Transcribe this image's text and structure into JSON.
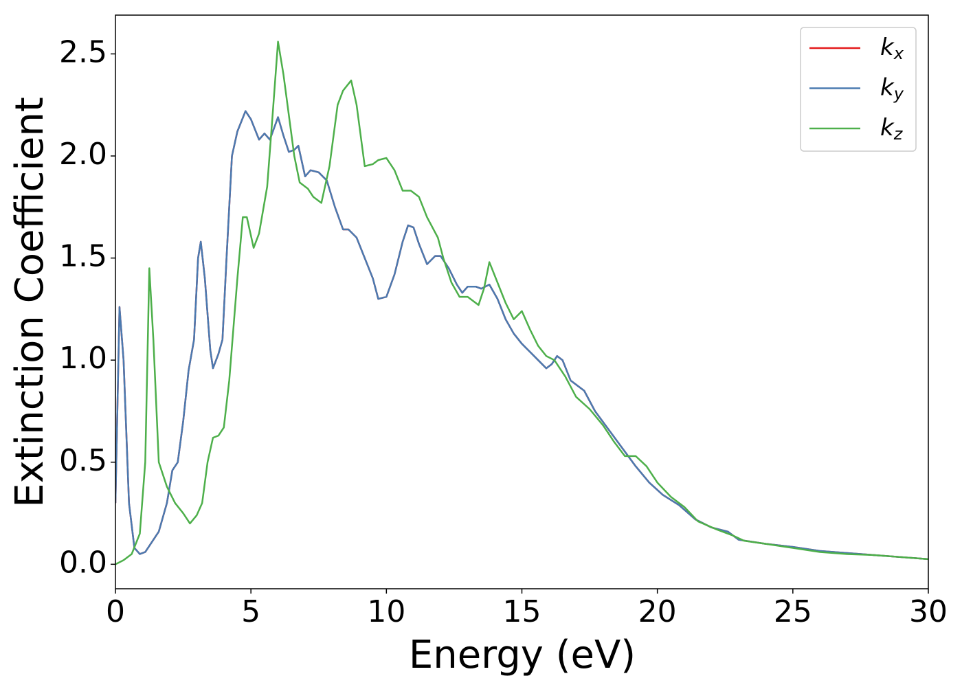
{
  "chart_data": {
    "type": "line",
    "x_label": "Energy (eV)",
    "y_label": "Extinction Coefficient",
    "xlim": [
      0,
      30
    ],
    "ylim": [
      -0.12,
      2.69
    ],
    "xticks": [
      0,
      5,
      10,
      15,
      20,
      25,
      30
    ],
    "yticks": [
      {
        "value": 0,
        "label": "0.0"
      },
      0.5,
      {
        "value": 1,
        "label": "1.0"
      },
      1.5,
      {
        "value": 2,
        "label": "2.0"
      },
      2.5
    ],
    "grid": false,
    "legend": "upper right",
    "series": [
      {
        "name": "kx",
        "color": "#e41a1c",
        "x": [
          0,
          0.15,
          0.3,
          0.5,
          0.7,
          0.9,
          1.1,
          1.3,
          1.6,
          1.9,
          2.1,
          2.3,
          2.5,
          2.7,
          2.9,
          3.05,
          3.15,
          3.3,
          3.5,
          3.6,
          3.8,
          3.95,
          4.1,
          4.3,
          4.5,
          4.8,
          5.0,
          5.3,
          5.5,
          5.7,
          6.0,
          6.2,
          6.4,
          6.6,
          6.75,
          7.0,
          7.2,
          7.5,
          7.8,
          8.1,
          8.4,
          8.6,
          8.9,
          9.2,
          9.5,
          9.7,
          10.0,
          10.3,
          10.6,
          10.8,
          11.0,
          11.2,
          11.5,
          11.8,
          12.0,
          12.3,
          12.6,
          12.8,
          13.0,
          13.3,
          13.5,
          13.8,
          14.1,
          14.4,
          14.7,
          15.0,
          15.3,
          15.6,
          15.9,
          16.1,
          16.3,
          16.5,
          16.8,
          17.3,
          17.7,
          18.2,
          18.7,
          19.2,
          19.7,
          20.2,
          20.8,
          21.4,
          22.0,
          22.6,
          23.0,
          24.0,
          25.0,
          26.0,
          27.0,
          28.0,
          29.0,
          30.0
        ],
        "values": [
          0.3,
          1.26,
          1.0,
          0.3,
          0.08,
          0.05,
          0.06,
          0.1,
          0.16,
          0.3,
          0.46,
          0.5,
          0.7,
          0.95,
          1.1,
          1.5,
          1.58,
          1.4,
          1.05,
          0.96,
          1.03,
          1.1,
          1.5,
          2.0,
          2.12,
          2.22,
          2.18,
          2.08,
          2.11,
          2.08,
          2.19,
          2.1,
          2.02,
          2.03,
          2.05,
          1.9,
          1.93,
          1.92,
          1.88,
          1.75,
          1.64,
          1.64,
          1.6,
          1.5,
          1.4,
          1.3,
          1.31,
          1.42,
          1.58,
          1.66,
          1.65,
          1.57,
          1.47,
          1.51,
          1.51,
          1.45,
          1.37,
          1.33,
          1.36,
          1.36,
          1.35,
          1.37,
          1.3,
          1.2,
          1.13,
          1.08,
          1.04,
          1.0,
          0.96,
          0.98,
          1.02,
          1.0,
          0.9,
          0.85,
          0.75,
          0.66,
          0.57,
          0.48,
          0.4,
          0.34,
          0.29,
          0.22,
          0.18,
          0.16,
          0.12,
          0.1,
          0.085,
          0.065,
          0.055,
          0.045,
          0.035,
          0.025
        ]
      },
      {
        "name": "ky",
        "color": "#4a7ab0",
        "x": [
          0,
          0.15,
          0.3,
          0.5,
          0.7,
          0.9,
          1.1,
          1.3,
          1.6,
          1.9,
          2.1,
          2.3,
          2.5,
          2.7,
          2.9,
          3.05,
          3.15,
          3.3,
          3.5,
          3.6,
          3.8,
          3.95,
          4.1,
          4.3,
          4.5,
          4.8,
          5.0,
          5.3,
          5.5,
          5.7,
          6.0,
          6.2,
          6.4,
          6.6,
          6.75,
          7.0,
          7.2,
          7.5,
          7.8,
          8.1,
          8.4,
          8.6,
          8.9,
          9.2,
          9.5,
          9.7,
          10.0,
          10.3,
          10.6,
          10.8,
          11.0,
          11.2,
          11.5,
          11.8,
          12.0,
          12.3,
          12.6,
          12.8,
          13.0,
          13.3,
          13.5,
          13.8,
          14.1,
          14.4,
          14.7,
          15.0,
          15.3,
          15.6,
          15.9,
          16.1,
          16.3,
          16.5,
          16.8,
          17.3,
          17.7,
          18.2,
          18.7,
          19.2,
          19.7,
          20.2,
          20.8,
          21.4,
          22.0,
          22.6,
          23.0,
          24.0,
          25.0,
          26.0,
          27.0,
          28.0,
          29.0,
          30.0
        ],
        "values": [
          0.3,
          1.26,
          1.0,
          0.3,
          0.08,
          0.05,
          0.06,
          0.1,
          0.16,
          0.3,
          0.46,
          0.5,
          0.7,
          0.95,
          1.1,
          1.5,
          1.58,
          1.4,
          1.05,
          0.96,
          1.03,
          1.1,
          1.5,
          2.0,
          2.12,
          2.22,
          2.18,
          2.08,
          2.11,
          2.08,
          2.19,
          2.1,
          2.02,
          2.03,
          2.05,
          1.9,
          1.93,
          1.92,
          1.88,
          1.75,
          1.64,
          1.64,
          1.6,
          1.5,
          1.4,
          1.3,
          1.31,
          1.42,
          1.58,
          1.66,
          1.65,
          1.57,
          1.47,
          1.51,
          1.51,
          1.45,
          1.37,
          1.33,
          1.36,
          1.36,
          1.35,
          1.37,
          1.3,
          1.2,
          1.13,
          1.08,
          1.04,
          1.0,
          0.96,
          0.98,
          1.02,
          1.0,
          0.9,
          0.85,
          0.75,
          0.66,
          0.57,
          0.48,
          0.4,
          0.34,
          0.29,
          0.22,
          0.18,
          0.16,
          0.12,
          0.1,
          0.085,
          0.065,
          0.055,
          0.045,
          0.035,
          0.025
        ]
      },
      {
        "name": "kz",
        "color": "#4daf4a",
        "x": [
          0,
          0.3,
          0.6,
          0.9,
          1.1,
          1.25,
          1.4,
          1.6,
          1.9,
          2.2,
          2.5,
          2.75,
          3.0,
          3.2,
          3.4,
          3.6,
          3.8,
          4.0,
          4.2,
          4.5,
          4.7,
          4.85,
          5.1,
          5.3,
          5.6,
          5.8,
          6.0,
          6.2,
          6.4,
          6.6,
          6.8,
          7.1,
          7.3,
          7.6,
          7.9,
          8.2,
          8.4,
          8.7,
          8.9,
          9.2,
          9.5,
          9.7,
          10.0,
          10.3,
          10.6,
          10.9,
          11.2,
          11.5,
          11.9,
          12.1,
          12.4,
          12.7,
          13.0,
          13.4,
          13.6,
          13.8,
          14.1,
          14.4,
          14.7,
          15.0,
          15.3,
          15.6,
          15.9,
          16.2,
          16.6,
          17.0,
          17.5,
          18.0,
          18.4,
          18.8,
          19.2,
          19.6,
          20.0,
          20.5,
          21.0,
          21.5,
          22.2,
          22.8,
          23.2,
          24.0,
          25.0,
          26.0,
          27.0,
          28.0,
          29.0,
          30.0
        ],
        "values": [
          0.0,
          0.02,
          0.05,
          0.15,
          0.5,
          1.45,
          1.1,
          0.5,
          0.38,
          0.3,
          0.25,
          0.2,
          0.24,
          0.3,
          0.5,
          0.62,
          0.63,
          0.67,
          0.9,
          1.4,
          1.7,
          1.7,
          1.55,
          1.62,
          1.85,
          2.2,
          2.56,
          2.4,
          2.2,
          2.0,
          1.87,
          1.84,
          1.8,
          1.77,
          1.95,
          2.25,
          2.32,
          2.37,
          2.25,
          1.95,
          1.96,
          1.98,
          1.99,
          1.93,
          1.83,
          1.83,
          1.8,
          1.7,
          1.6,
          1.5,
          1.38,
          1.31,
          1.31,
          1.27,
          1.35,
          1.48,
          1.38,
          1.28,
          1.2,
          1.24,
          1.15,
          1.07,
          1.02,
          1.0,
          0.92,
          0.82,
          0.76,
          0.68,
          0.6,
          0.53,
          0.53,
          0.48,
          0.4,
          0.33,
          0.28,
          0.21,
          0.17,
          0.14,
          0.115,
          0.1,
          0.08,
          0.06,
          0.05,
          0.045,
          0.035,
          0.025
        ]
      }
    ]
  }
}
